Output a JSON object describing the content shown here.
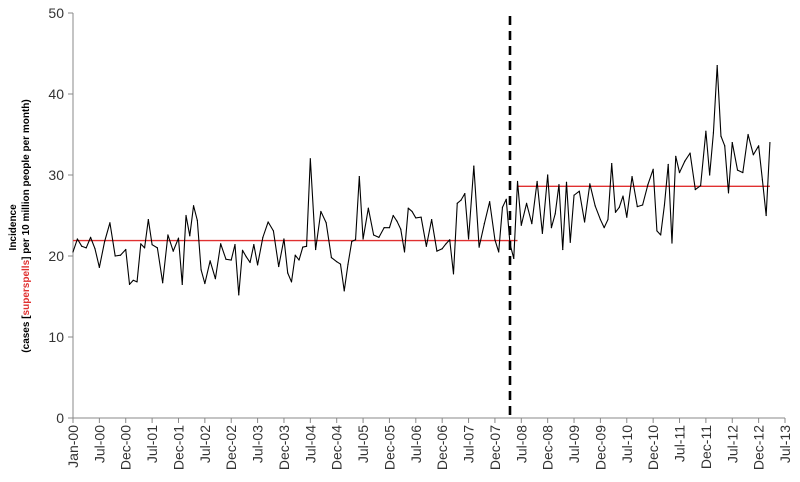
{
  "chart_data": {
    "type": "line",
    "title": "",
    "xlabel": "",
    "ylabel": {
      "line1": "Incidence",
      "line2_pre": "(cases [",
      "line2_mid": "superspells",
      "line2_post": "] per 10 million people per month)"
    },
    "ylim": [
      0,
      50
    ],
    "yticks": [
      "0",
      "10",
      "20",
      "30",
      "40",
      "50"
    ],
    "xticks": [
      "Jan-00",
      "Jul-00",
      "Dec-00",
      "Jul-01",
      "Dec-01",
      "Jul-02",
      "Dec-02",
      "Jul-03",
      "Dec-03",
      "Jul-04",
      "Dec-04",
      "Jul-05",
      "Dec-05",
      "Jul-06",
      "Dec-06",
      "Jul-07",
      "Dec-07",
      "Jul-08",
      "Dec-08",
      "Jul-09",
      "Dec-09",
      "Jul-10",
      "Dec-10",
      "Jul-11",
      "Dec-11",
      "Jul-12",
      "Dec-12",
      "Jul-13"
    ],
    "grid": false,
    "series": [
      {
        "color": "#000000",
        "values": [
          20.5,
          22.1,
          21.2,
          21.0,
          22.3,
          20.9,
          18.6,
          21.8,
          24.1,
          20.0,
          20.1,
          20.8,
          16.5,
          17.0,
          16.8,
          21.5,
          21.0,
          24.5,
          21.4,
          21.0,
          16.7,
          22.6,
          20.6,
          22.2,
          16.5,
          25.0,
          22.5,
          26.2,
          24.4,
          18.3,
          16.6,
          19.4,
          17.2,
          21.5,
          19.6,
          19.5,
          21.4,
          15.2,
          20.7,
          19.9,
          19.2,
          21.4,
          18.9,
          22.3,
          24.2,
          23.1,
          18.7,
          22.1,
          17.9,
          16.8,
          20.1,
          19.5,
          21.1,
          21.2,
          32.0,
          20.8,
          25.5,
          24.1,
          19.8,
          19.3,
          19.0,
          15.7,
          19.0,
          21.8,
          22.0,
          29.8,
          22.1,
          25.9,
          22.6,
          22.3,
          23.5,
          23.5,
          25.0,
          24.3,
          23.3,
          20.5,
          25.9,
          25.5,
          24.7,
          24.8,
          21.2,
          24.5,
          20.6,
          20.9,
          21.5,
          22.0,
          17.8,
          26.5,
          26.9,
          27.7,
          22.1,
          31.1,
          21.1,
          24.0,
          26.7,
          22.0,
          20.5,
          26.0,
          27.0,
          21.5,
          19.7,
          29.2,
          23.8,
          26.5,
          24.0,
          29.2,
          22.8,
          30.0,
          23.5,
          25.2,
          28.8,
          20.8,
          29.1,
          21.7,
          27.5,
          28.0,
          24.2,
          28.9,
          26.2,
          24.5,
          23.5,
          24.5,
          31.4,
          25.4,
          26.0,
          27.4,
          24.8,
          29.8,
          26.1,
          26.3,
          28.8,
          30.7,
          23.1,
          22.6,
          26.3,
          31.3,
          21.6,
          32.3,
          30.3,
          31.7,
          32.7,
          28.2,
          28.7,
          35.4,
          30.0,
          35.2,
          43.5,
          34.8,
          33.6,
          27.8,
          34.0,
          30.6,
          30.3,
          35.0,
          32.5,
          33.6,
          29.4,
          25.0,
          34.0
        ]
      }
    ],
    "mean_lines": [
      {
        "color": "#e03030",
        "value": 21.9,
        "from": "Jan-00",
        "to": "Jun-08"
      },
      {
        "color": "#e03030",
        "value": 28.6,
        "from": "Jun-08",
        "to": "Mar-13"
      }
    ],
    "breakpoint": {
      "at": "Apr-08",
      "style": "dashed",
      "color": "#000000"
    }
  }
}
